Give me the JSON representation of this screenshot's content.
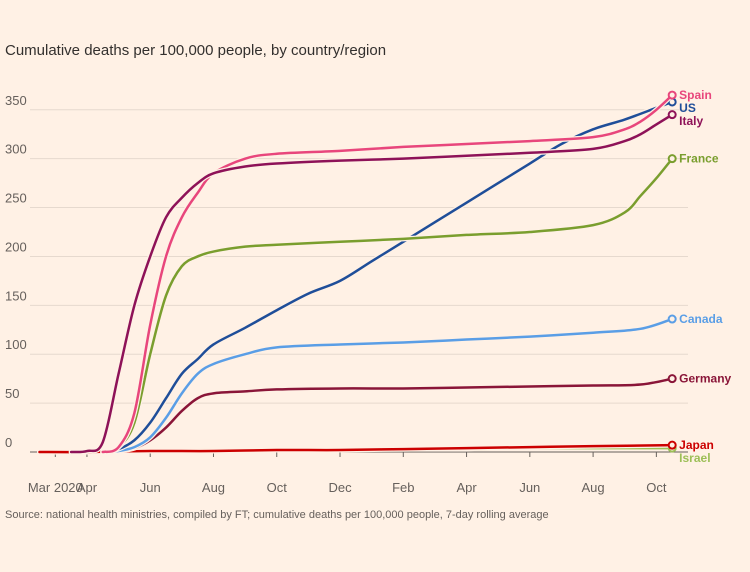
{
  "chart_data": {
    "type": "line",
    "title": "Cumulative deaths per 100,000 people, by country/region",
    "note": "Source: national health ministries, compiled by FT; cumulative deaths per 100,000 people, 7-day rolling average",
    "x_ticks": [
      "Mar 2020",
      "Apr",
      "Jun",
      "Aug",
      "Oct",
      "Dec",
      "Feb",
      "Apr",
      "Jun",
      "Aug",
      "Oct"
    ],
    "x_tick_months": [
      2,
      3,
      5,
      7,
      9,
      11,
      13,
      15,
      17,
      19,
      21
    ],
    "y_ticks": [
      0,
      50,
      100,
      150,
      200,
      250,
      300,
      350
    ],
    "ylim": [
      0,
      360
    ],
    "xlim": [
      1.2,
      22
    ],
    "grid": true,
    "legend": "end-labels",
    "series": [
      {
        "name": "Israel",
        "color": "#9dbf57",
        "x": [
          1.5,
          3,
          5,
          7,
          9,
          11,
          13,
          15,
          17,
          19,
          21.5
        ],
        "y": [
          0,
          0,
          1,
          2,
          2,
          3,
          3,
          3,
          4,
          4,
          4
        ]
      },
      {
        "name": "Japan",
        "color": "#cc0000",
        "x": [
          1.5,
          3,
          5,
          7,
          9,
          11,
          13,
          15,
          17,
          19,
          21.5
        ],
        "y": [
          0,
          0,
          1,
          1,
          2,
          2,
          3,
          4,
          5,
          6,
          7
        ]
      },
      {
        "name": "Germany",
        "color": "#8a1538",
        "x": [
          3.5,
          4,
          4.5,
          5,
          5.5,
          6,
          6.5,
          7,
          8,
          9,
          11,
          13,
          15,
          17,
          19,
          20.5,
          21.5
        ],
        "y": [
          0,
          1,
          4,
          12,
          25,
          42,
          55,
          60,
          62,
          64,
          65,
          65,
          66,
          67,
          68,
          69,
          75
        ]
      },
      {
        "name": "Canada",
        "color": "#5a9ee6",
        "x": [
          3.5,
          4,
          4.5,
          5,
          5.5,
          6,
          6.5,
          7,
          8,
          9,
          11,
          13,
          15,
          17,
          19,
          20.5,
          21.5
        ],
        "y": [
          0,
          1,
          5,
          15,
          35,
          60,
          80,
          90,
          100,
          107,
          110,
          112,
          115,
          118,
          122,
          126,
          136
        ]
      },
      {
        "name": "US",
        "color": "#1f4e99",
        "x": [
          3.5,
          4,
          4.5,
          5,
          5.5,
          6,
          6.5,
          7,
          8,
          9,
          10,
          11,
          12,
          13,
          14,
          15,
          16,
          17,
          18,
          19,
          20,
          21,
          21.5
        ],
        "y": [
          0,
          3,
          12,
          30,
          55,
          80,
          95,
          110,
          127,
          145,
          162,
          175,
          195,
          215,
          235,
          255,
          275,
          295,
          315,
          330,
          340,
          352,
          358
        ]
      },
      {
        "name": "France",
        "color": "#7a9e2e",
        "x": [
          3.5,
          4,
          4.5,
          5,
          5.5,
          6,
          6.5,
          7,
          8,
          9,
          11,
          13,
          15,
          17,
          19,
          20,
          20.5,
          21,
          21.5
        ],
        "y": [
          0,
          5,
          30,
          100,
          160,
          190,
          200,
          205,
          210,
          212,
          215,
          218,
          222,
          225,
          232,
          245,
          262,
          280,
          300
        ]
      },
      {
        "name": "Spain",
        "color": "#e8467c",
        "x": [
          3.5,
          4,
          4.5,
          5,
          5.5,
          6,
          6.5,
          7,
          8,
          9,
          11,
          13,
          15,
          17,
          19,
          20,
          20.5,
          21,
          21.5
        ],
        "y": [
          0,
          5,
          40,
          130,
          200,
          240,
          265,
          285,
          300,
          305,
          308,
          312,
          315,
          318,
          322,
          330,
          338,
          350,
          365
        ]
      },
      {
        "name": "Italy",
        "color": "#8e1258",
        "x": [
          2.5,
          3,
          3.5,
          4,
          4.5,
          5,
          5.5,
          6,
          6.5,
          7,
          8,
          9,
          11,
          13,
          15,
          17,
          19,
          20,
          20.5,
          21,
          21.5
        ],
        "y": [
          0,
          1,
          10,
          80,
          150,
          200,
          240,
          260,
          275,
          285,
          292,
          295,
          298,
          300,
          303,
          306,
          310,
          318,
          325,
          335,
          345
        ]
      }
    ]
  }
}
